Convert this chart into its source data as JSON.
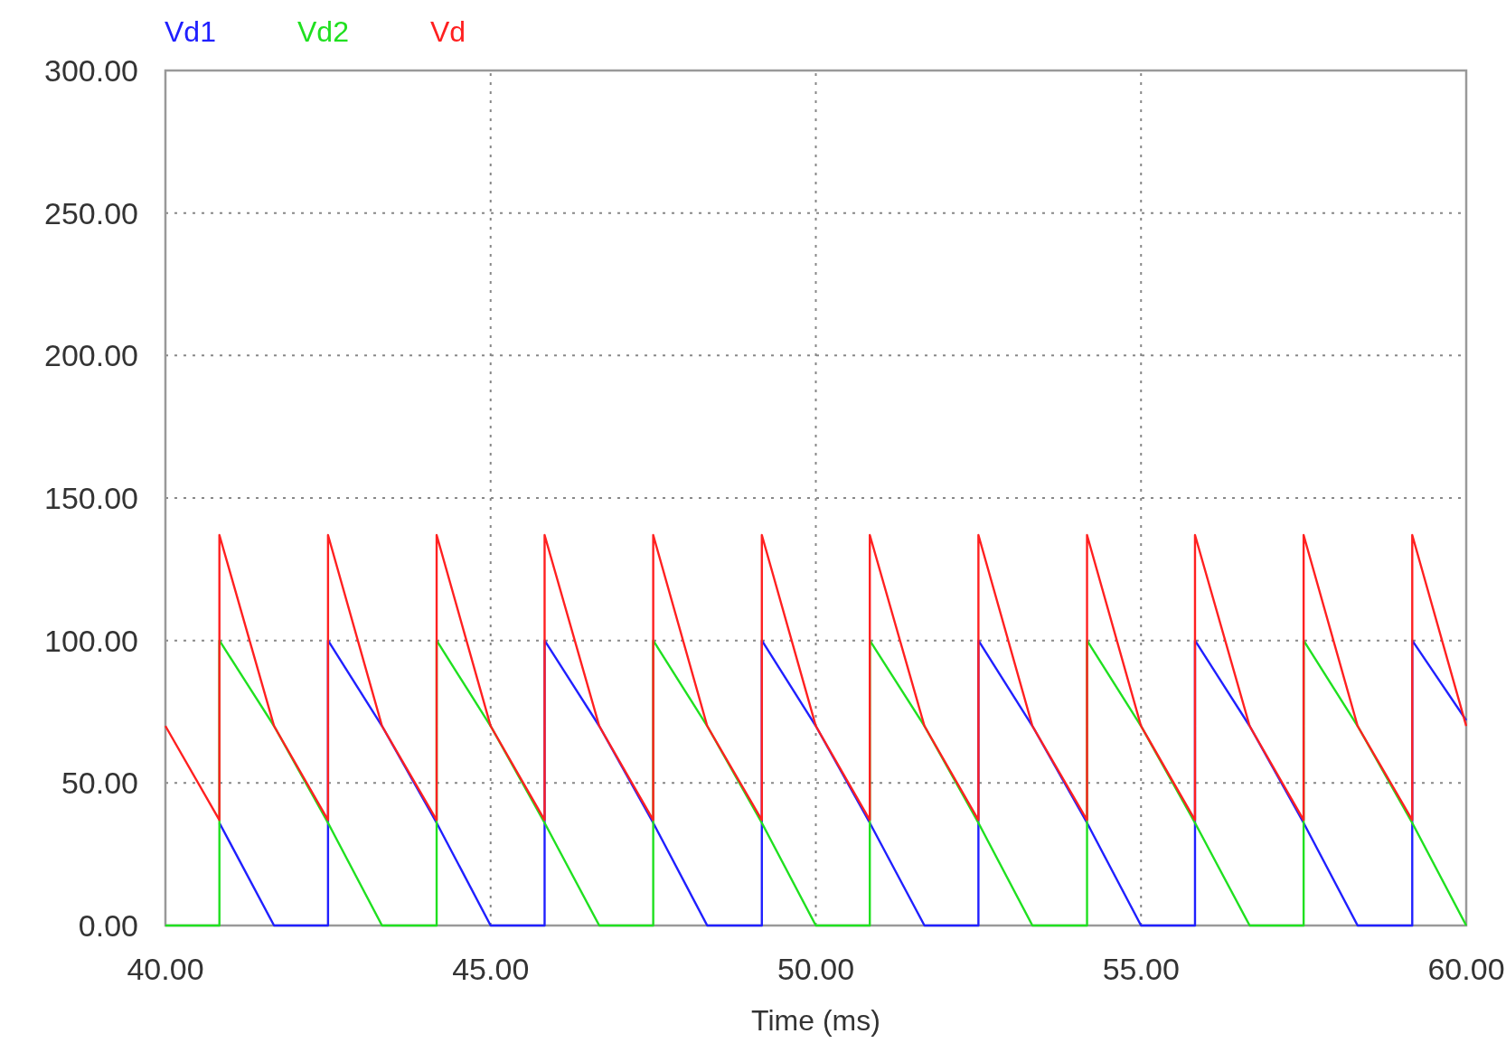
{
  "chart_data": {
    "type": "line",
    "xlabel": "Time (ms)",
    "xlim": [
      40,
      60
    ],
    "ylim": [
      0,
      300
    ],
    "xticks": [
      {
        "value": 40,
        "label": "40.00"
      },
      {
        "value": 45,
        "label": "45.00"
      },
      {
        "value": 50,
        "label": "50.00"
      },
      {
        "value": 55,
        "label": "55.00"
      },
      {
        "value": 60,
        "label": "60.00"
      }
    ],
    "yticks": [
      {
        "value": 0,
        "label": "0.00"
      },
      {
        "value": 50,
        "label": "50.00"
      },
      {
        "value": 100,
        "label": "100.00"
      },
      {
        "value": 150,
        "label": "150.00"
      },
      {
        "value": 200,
        "label": "200.00"
      },
      {
        "value": 250,
        "label": "250.00"
      },
      {
        "value": 300,
        "label": "300.00"
      }
    ],
    "grid": true,
    "legend": "top left",
    "line_style": "solid",
    "marker": "none",
    "series": [
      {
        "name": "Vd1",
        "color": "#2020ff",
        "x": [
          40.83,
          41.67,
          42.5,
          42.5,
          43.33,
          44.17,
          45,
          45.83,
          45.83,
          46.67,
          47.5,
          48.33,
          49.17,
          49.17,
          50,
          50.83,
          51.67,
          52.5,
          52.5,
          53.33,
          54.17,
          55,
          55.83,
          55.83,
          56.67,
          57.5,
          58.33,
          59.17,
          59.17,
          60
        ],
        "values": [
          36,
          0,
          0,
          100,
          70,
          36,
          0,
          0,
          100,
          70,
          36,
          0,
          0,
          100,
          70,
          36,
          0,
          0,
          100,
          70,
          36,
          0,
          0,
          100,
          70,
          36,
          0,
          0,
          100,
          72
        ]
      },
      {
        "name": "Vd2",
        "color": "#20e020",
        "x": [
          40,
          40.83,
          40.83,
          41.67,
          42.5,
          43.33,
          44.17,
          44.17,
          45,
          45.83,
          46.67,
          47.5,
          47.5,
          48.33,
          49.17,
          50,
          50.83,
          50.83,
          51.67,
          52.5,
          53.33,
          54.17,
          54.17,
          55,
          55.83,
          56.67,
          57.5,
          57.5,
          58.33,
          59.17,
          60
        ],
        "values": [
          0,
          0,
          100,
          70,
          36,
          0,
          0,
          100,
          70,
          36,
          0,
          0,
          100,
          70,
          36,
          0,
          0,
          100,
          70,
          36,
          0,
          0,
          100,
          70,
          36,
          0,
          0,
          100,
          70,
          36,
          0
        ]
      },
      {
        "name": "Vd",
        "color": "#ff2020",
        "x": [
          40,
          40.83,
          40.83,
          41.67,
          42.5,
          42.5,
          43.33,
          44.17,
          44.17,
          45,
          45.83,
          45.83,
          46.67,
          47.5,
          47.5,
          48.33,
          49.17,
          49.17,
          50,
          50.83,
          50.83,
          51.67,
          52.5,
          52.5,
          53.33,
          54.17,
          54.17,
          55,
          55.83,
          55.83,
          56.67,
          57.5,
          57.5,
          58.33,
          59.17,
          59.17,
          60
        ],
        "values": [
          70,
          37,
          137,
          70,
          37,
          137,
          70,
          37,
          137,
          70,
          37,
          137,
          70,
          37,
          137,
          70,
          37,
          137,
          70,
          37,
          137,
          70,
          37,
          137,
          70,
          37,
          137,
          70,
          37,
          137,
          70,
          37,
          137,
          70,
          37,
          137,
          70
        ]
      }
    ]
  }
}
